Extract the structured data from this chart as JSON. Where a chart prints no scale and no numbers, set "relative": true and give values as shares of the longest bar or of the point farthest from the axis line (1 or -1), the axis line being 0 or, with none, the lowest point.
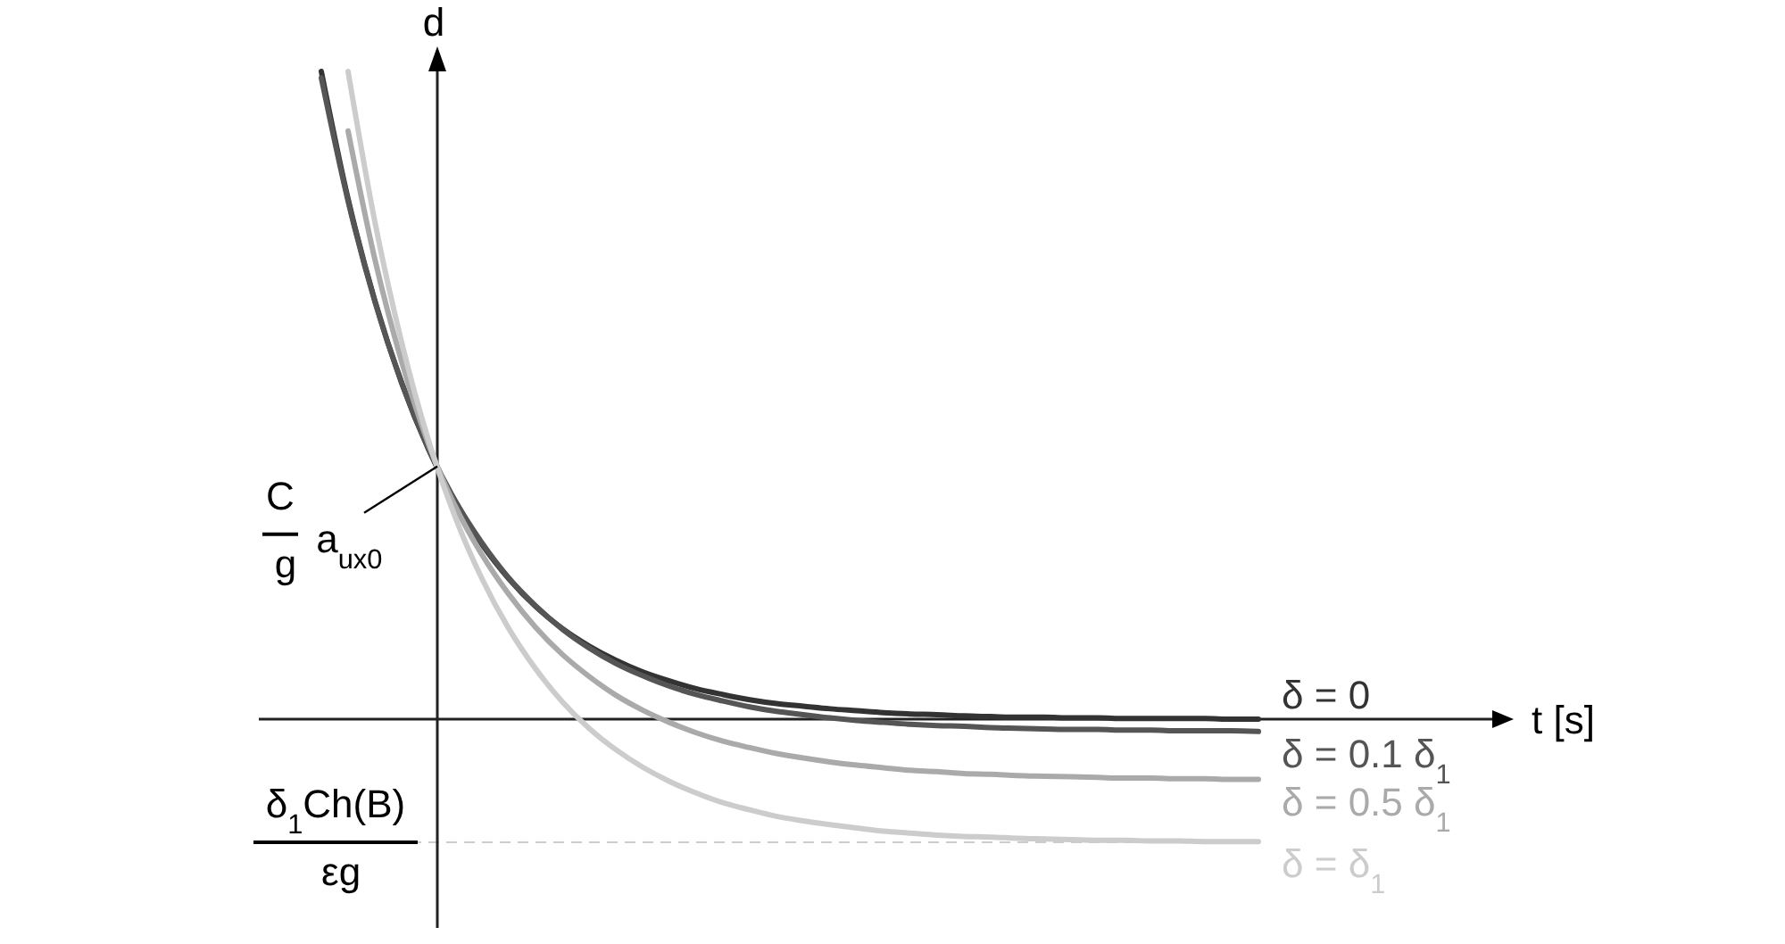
{
  "chart_data": {
    "type": "line",
    "relative": true,
    "ylabel": "d",
    "line_style": "solid",
    "categories": [
      null,
      null,
      null,
      null,
      null,
      null,
      null,
      null,
      null,
      null,
      null,
      null,
      null,
      null,
      null,
      null,
      null,
      null,
      null,
      null,
      null,
      null,
      null,
      null,
      null,
      null,
      null,
      null,
      null,
      null,
      null,
      null,
      null,
      null,
      null,
      null
    ],
    "series": [
      {
        "name": "δ = 0",
        "color": "#333333",
        "values": [
          1.0,
          0.803,
          0.646,
          0.519,
          0.417,
          0.336,
          0.27,
          0.217,
          0.174,
          0.14,
          0.113,
          0.091,
          0.073,
          0.059,
          0.047,
          0.038,
          0.03,
          0.024,
          0.02,
          0.016,
          0.013,
          0.01,
          0.008,
          0.007,
          0.005,
          0.004,
          0.003,
          0.003,
          0.002,
          0.002,
          0.001,
          0.001,
          0.001,
          0.001,
          0,
          0
        ]
      },
      {
        "name": "δ = 0.1 δ$_{1}$",
        "color": "#555555",
        "values": [
          0.99,
          0.8,
          0.645,
          0.52,
          0.418,
          0.337,
          0.272,
          0.218,
          0.175,
          0.139,
          0.11,
          0.086,
          0.067,
          0.051,
          0.038,
          0.028,
          0.019,
          0.012,
          0.007,
          0.002,
          -0.002,
          -0.005,
          -0.008,
          -0.01,
          -0.011,
          -0.013,
          -0.014,
          -0.015,
          -0.016,
          -0.016,
          -0.017,
          -0.017,
          -0.018,
          -0.018,
          -0.018,
          -0.019
        ]
      },
      {
        "name": "δ = 0.5 δ$_{1}$",
        "color": "#aaaaaa",
        "values": [
          null,
          0.908,
          0.71,
          0.552,
          0.425,
          0.329,
          0.254,
          0.193,
          0.142,
          0.1,
          0.066,
          0.037,
          0.014,
          -0.005,
          -0.021,
          -0.034,
          -0.044,
          -0.053,
          -0.06,
          -0.066,
          -0.071,
          -0.075,
          -0.079,
          -0.081,
          -0.084,
          -0.085,
          -0.087,
          -0.088,
          -0.089,
          -0.09,
          -0.091,
          -0.091,
          -0.092,
          -0.092,
          -0.093,
          -0.093
        ]
      },
      {
        "name": "δ = δ$_{1}$",
        "color": "#cccccc",
        "values": [
          null,
          1.0,
          0.768,
          0.582,
          0.431,
          0.312,
          0.217,
          0.14,
          0.078,
          0.027,
          -0.014,
          -0.047,
          -0.074,
          -0.096,
          -0.114,
          -0.129,
          -0.14,
          -0.15,
          -0.157,
          -0.163,
          -0.168,
          -0.173,
          -0.176,
          -0.179,
          -0.181,
          -0.182,
          -0.184,
          -0.185,
          -0.186,
          -0.187,
          -0.187,
          -0.188,
          -0.188,
          -0.189,
          -0.189,
          -0.189
        ]
      }
    ],
    "annotations": [
      "C g a$_{ux0}$",
      "t [s]"
    ],
    "ref_lines": [
      {
        "axis": "y",
        "value": -0.19,
        "label": "δ$_{1}$Ch(B) εg",
        "color": "#cccccc",
        "line_style": "dashed"
      }
    ]
  }
}
